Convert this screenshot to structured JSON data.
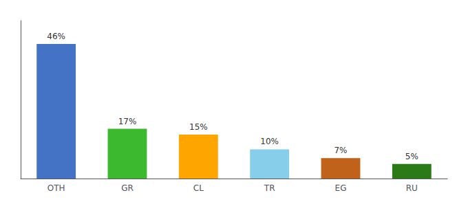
{
  "chart_data": {
    "type": "bar",
    "categories": [
      "OTH",
      "GR",
      "CL",
      "TR",
      "EG",
      "RU"
    ],
    "values": [
      46,
      17,
      15,
      10,
      7,
      5
    ],
    "value_labels": [
      "46%",
      "17%",
      "15%",
      "10%",
      "7%",
      "5%"
    ],
    "colors": [
      "#4472C4",
      "#3CB92E",
      "#FFA500",
      "#87CEEB",
      "#C0621A",
      "#2A7A18"
    ],
    "ylim": [
      0,
      54
    ],
    "data_labels": true,
    "tick_labels": "x",
    "grid": false
  }
}
